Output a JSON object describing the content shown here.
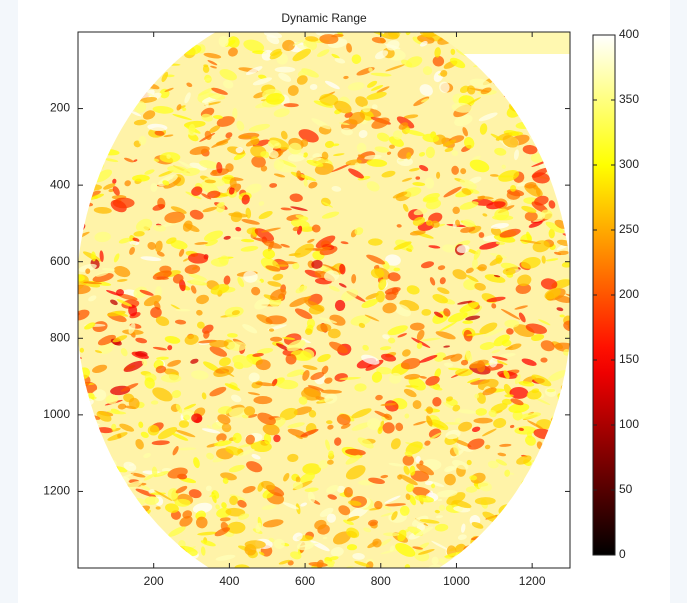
{
  "chart_data": {
    "type": "heatmap",
    "title": "Dynamic Range",
    "xlim": [
      0,
      1300
    ],
    "xticks": [
      200,
      400,
      600,
      800,
      1000,
      1200
    ],
    "ylim": [
      0,
      1400
    ],
    "yticks": [
      200,
      400,
      600,
      800,
      1000,
      1200
    ],
    "colorbar": {
      "clim": [
        0,
        400
      ],
      "ticks": [
        0,
        50,
        100,
        150,
        200,
        250,
        300,
        350,
        400
      ],
      "colormap": "hot"
    }
  }
}
